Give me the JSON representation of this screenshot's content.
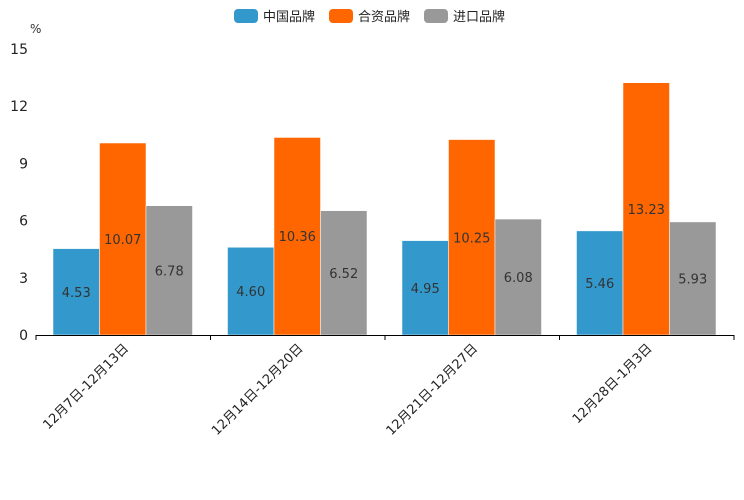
{
  "chart_data": {
    "type": "bar",
    "title": "",
    "xlabel": "",
    "ylabel": "%",
    "ylim": [
      0,
      15
    ],
    "yticks": [
      0,
      3,
      6,
      9,
      12,
      15
    ],
    "grid": false,
    "legend_position": "top-center",
    "categories": [
      "12月7日-12月13日",
      "12月14日-12月20日",
      "12月21日-12月27日",
      "12月28日-1月3日"
    ],
    "series": [
      {
        "name": "中国品牌",
        "color": "#3399cc",
        "values": [
          4.53,
          4.6,
          4.95,
          5.46
        ]
      },
      {
        "name": "合资品牌",
        "color": "#ff6600",
        "values": [
          10.07,
          10.36,
          10.25,
          13.23
        ]
      },
      {
        "name": "进口品牌",
        "color": "#999999",
        "values": [
          6.78,
          6.52,
          6.08,
          5.93
        ]
      }
    ]
  }
}
